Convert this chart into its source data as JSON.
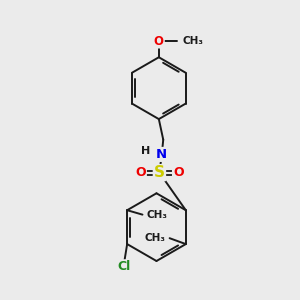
{
  "background_color": "#ebebeb",
  "atom_colors": {
    "C": "#1a1a1a",
    "N": "#0000ee",
    "O": "#ee0000",
    "S": "#cccc00",
    "Cl": "#228b22",
    "H": "#1a1a1a"
  },
  "bond_color": "#1a1a1a",
  "figsize": [
    3.0,
    3.0
  ],
  "dpi": 100,
  "xlim": [
    0,
    10
  ],
  "ylim": [
    0,
    10
  ]
}
